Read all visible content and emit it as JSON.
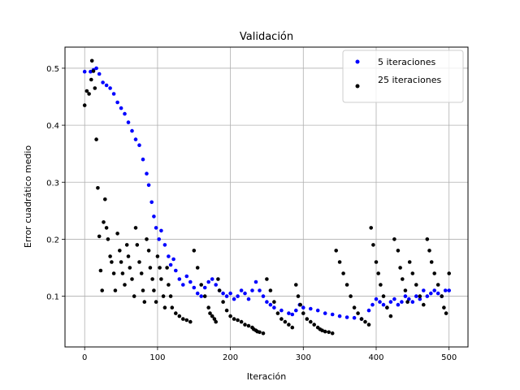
{
  "chart_data": {
    "type": "scatter",
    "title": "Validación",
    "xlabel": "Iteración",
    "ylabel": "Error cuadrático medio",
    "xlim": [
      -27,
      526
    ],
    "ylim": [
      0.011,
      0.537
    ],
    "xticks": [
      0,
      100,
      200,
      300,
      400,
      500
    ],
    "yticks": [
      0.1,
      0.2,
      0.3,
      0.4,
      0.5
    ],
    "xtick_labels": [
      "0",
      "100",
      "200",
      "300",
      "400",
      "500"
    ],
    "ytick_labels": [
      "0.1",
      "0.2",
      "0.3",
      "0.4",
      "0.5"
    ],
    "grid": true,
    "legend_position": "top-right",
    "series": [
      {
        "name": "5 iteraciones",
        "color": "#0000ff",
        "x": [
          0,
          8,
          12,
          16,
          20,
          25,
          30,
          35,
          40,
          45,
          50,
          55,
          60,
          65,
          70,
          75,
          80,
          85,
          88,
          92,
          95,
          98,
          102,
          105,
          110,
          115,
          118,
          122,
          125,
          130,
          135,
          140,
          145,
          150,
          155,
          160,
          165,
          170,
          175,
          180,
          185,
          190,
          195,
          200,
          205,
          210,
          215,
          220,
          225,
          230,
          235,
          240,
          245,
          250,
          255,
          260,
          270,
          280,
          285,
          290,
          295,
          300,
          310,
          320,
          330,
          340,
          350,
          360,
          370,
          380,
          390,
          395,
          400,
          405,
          410,
          415,
          420,
          425,
          430,
          435,
          440,
          445,
          450,
          455,
          460,
          465,
          470,
          475,
          480,
          485,
          490,
          495,
          500
        ],
        "y": [
          0.494,
          0.494,
          0.497,
          0.5,
          0.49,
          0.475,
          0.47,
          0.465,
          0.455,
          0.44,
          0.43,
          0.42,
          0.405,
          0.39,
          0.375,
          0.365,
          0.34,
          0.315,
          0.295,
          0.265,
          0.24,
          0.22,
          0.2,
          0.215,
          0.19,
          0.17,
          0.155,
          0.165,
          0.145,
          0.13,
          0.12,
          0.135,
          0.125,
          0.115,
          0.105,
          0.1,
          0.115,
          0.125,
          0.13,
          0.12,
          0.11,
          0.105,
          0.1,
          0.105,
          0.095,
          0.1,
          0.11,
          0.105,
          0.095,
          0.11,
          0.125,
          0.11,
          0.1,
          0.09,
          0.085,
          0.08,
          0.075,
          0.07,
          0.068,
          0.075,
          0.085,
          0.08,
          0.078,
          0.075,
          0.07,
          0.068,
          0.065,
          0.063,
          0.062,
          0.06,
          0.075,
          0.085,
          0.095,
          0.09,
          0.085,
          0.08,
          0.09,
          0.095,
          0.085,
          0.09,
          0.1,
          0.095,
          0.09,
          0.1,
          0.095,
          0.11,
          0.1,
          0.105,
          0.11,
          0.105,
          0.1,
          0.11,
          0.11
        ]
      },
      {
        "name": "25 iteraciones",
        "color": "#000000",
        "x": [
          0,
          3,
          6,
          9,
          10,
          12,
          14,
          16,
          18,
          20,
          22,
          24,
          26,
          28,
          30,
          32,
          35,
          37,
          40,
          42,
          45,
          48,
          50,
          52,
          55,
          58,
          60,
          62,
          65,
          68,
          70,
          72,
          75,
          78,
          80,
          82,
          85,
          88,
          90,
          93,
          95,
          98,
          100,
          103,
          105,
          108,
          110,
          113,
          115,
          118,
          120,
          125,
          130,
          135,
          140,
          145,
          150,
          155,
          160,
          165,
          170,
          172,
          175,
          178,
          180,
          183,
          185,
          190,
          195,
          200,
          205,
          210,
          215,
          220,
          225,
          230,
          232,
          235,
          237,
          240,
          245,
          250,
          255,
          260,
          265,
          270,
          275,
          280,
          285,
          290,
          293,
          296,
          300,
          305,
          310,
          315,
          320,
          323,
          326,
          330,
          335,
          340,
          345,
          350,
          355,
          360,
          365,
          370,
          375,
          380,
          385,
          390,
          393,
          396,
          400,
          403,
          406,
          410,
          415,
          420,
          425,
          430,
          433,
          436,
          440,
          443,
          446,
          450,
          455,
          460,
          465,
          470,
          473,
          476,
          480,
          485,
          490,
          493,
          496,
          500
        ],
        "y": [
          0.435,
          0.46,
          0.455,
          0.48,
          0.513,
          0.495,
          0.465,
          0.375,
          0.29,
          0.205,
          0.145,
          0.11,
          0.23,
          0.27,
          0.22,
          0.2,
          0.17,
          0.16,
          0.14,
          0.11,
          0.21,
          0.18,
          0.16,
          0.14,
          0.12,
          0.19,
          0.17,
          0.15,
          0.13,
          0.1,
          0.22,
          0.19,
          0.16,
          0.14,
          0.11,
          0.09,
          0.2,
          0.18,
          0.15,
          0.13,
          0.11,
          0.09,
          0.17,
          0.15,
          0.13,
          0.1,
          0.08,
          0.15,
          0.12,
          0.1,
          0.08,
          0.07,
          0.065,
          0.06,
          0.058,
          0.055,
          0.18,
          0.15,
          0.12,
          0.1,
          0.08,
          0.07,
          0.065,
          0.06,
          0.055,
          0.13,
          0.11,
          0.09,
          0.075,
          0.065,
          0.06,
          0.058,
          0.055,
          0.05,
          0.048,
          0.045,
          0.042,
          0.04,
          0.038,
          0.037,
          0.035,
          0.13,
          0.11,
          0.09,
          0.07,
          0.06,
          0.055,
          0.05,
          0.045,
          0.12,
          0.1,
          0.085,
          0.07,
          0.06,
          0.055,
          0.05,
          0.045,
          0.042,
          0.04,
          0.038,
          0.037,
          0.035,
          0.18,
          0.16,
          0.14,
          0.12,
          0.1,
          0.08,
          0.07,
          0.06,
          0.055,
          0.05,
          0.22,
          0.19,
          0.16,
          0.14,
          0.12,
          0.1,
          0.08,
          0.065,
          0.2,
          0.18,
          0.15,
          0.13,
          0.11,
          0.09,
          0.16,
          0.14,
          0.12,
          0.1,
          0.085,
          0.2,
          0.18,
          0.16,
          0.14,
          0.12,
          0.1,
          0.08,
          0.07,
          0.14
        ]
      }
    ]
  }
}
